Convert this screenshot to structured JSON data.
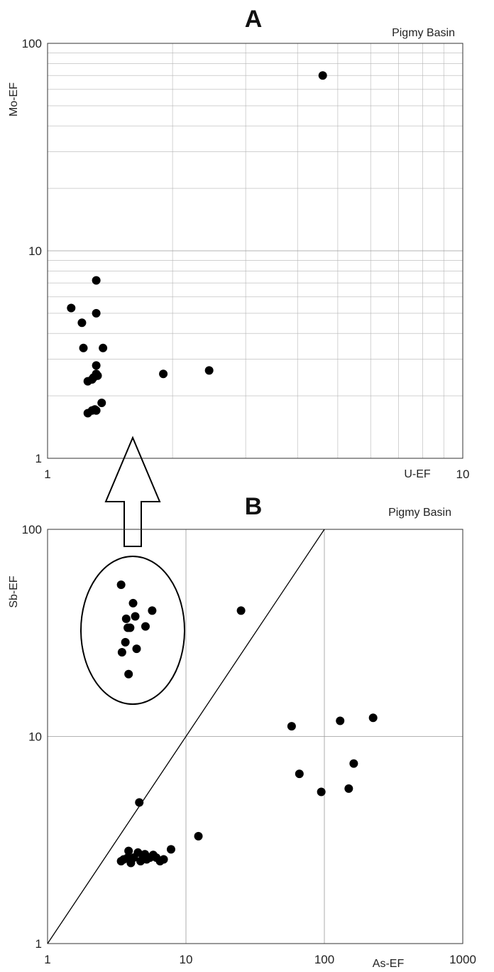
{
  "chart_data": [
    {
      "type": "scatter",
      "panel": "A",
      "title": "Pigmy Basin",
      "xlabel": "U-EF",
      "ylabel": "Mo-EF",
      "xscale": "log",
      "yscale": "log",
      "xlim": [
        1,
        10
      ],
      "ylim": [
        1,
        100
      ],
      "x_ticks": [
        "1",
        "10"
      ],
      "y_ticks": [
        "1",
        "10",
        "100"
      ],
      "grid": true,
      "points": [
        {
          "x": 1.14,
          "y": 5.3
        },
        {
          "x": 1.21,
          "y": 4.5
        },
        {
          "x": 1.22,
          "y": 3.4
        },
        {
          "x": 1.25,
          "y": 2.35
        },
        {
          "x": 1.28,
          "y": 2.4
        },
        {
          "x": 1.29,
          "y": 2.45
        },
        {
          "x": 1.31,
          "y": 2.8
        },
        {
          "x": 1.31,
          "y": 7.2
        },
        {
          "x": 1.31,
          "y": 5.0
        },
        {
          "x": 1.31,
          "y": 2.55
        },
        {
          "x": 1.32,
          "y": 2.5
        },
        {
          "x": 1.25,
          "y": 1.65
        },
        {
          "x": 1.28,
          "y": 1.7
        },
        {
          "x": 1.3,
          "y": 1.72
        },
        {
          "x": 1.31,
          "y": 1.7
        },
        {
          "x": 1.36,
          "y": 3.4
        },
        {
          "x": 1.35,
          "y": 1.85
        },
        {
          "x": 1.9,
          "y": 2.55
        },
        {
          "x": 2.45,
          "y": 2.65
        },
        {
          "x": 4.6,
          "y": 70
        }
      ]
    },
    {
      "type": "scatter",
      "panel": "B",
      "title": "Pigmy Basin",
      "xlabel": "As-EF",
      "ylabel": "Sb-EF",
      "xscale": "log",
      "yscale": "log",
      "xlim": [
        1,
        1000
      ],
      "ylim": [
        1,
        100
      ],
      "x_ticks": [
        "1",
        "10",
        "100",
        "1000"
      ],
      "y_ticks": [
        "1",
        "10",
        "100"
      ],
      "grid": true,
      "reference_line": "1:1",
      "points": [
        {
          "x": 3.4,
          "y": 54
        },
        {
          "x": 3.7,
          "y": 37
        },
        {
          "x": 3.8,
          "y": 33.5
        },
        {
          "x": 3.95,
          "y": 33.5
        },
        {
          "x": 4.15,
          "y": 44
        },
        {
          "x": 4.3,
          "y": 38
        },
        {
          "x": 3.65,
          "y": 28.5
        },
        {
          "x": 3.45,
          "y": 25.5
        },
        {
          "x": 4.4,
          "y": 26.5
        },
        {
          "x": 5.1,
          "y": 34
        },
        {
          "x": 5.7,
          "y": 40.5
        },
        {
          "x": 3.85,
          "y": 20
        },
        {
          "x": 25,
          "y": 40.5
        },
        {
          "x": 4.6,
          "y": 4.8
        },
        {
          "x": 3.4,
          "y": 2.5
        },
        {
          "x": 3.55,
          "y": 2.55
        },
        {
          "x": 3.8,
          "y": 2.6
        },
        {
          "x": 3.85,
          "y": 2.8
        },
        {
          "x": 4.0,
          "y": 2.45
        },
        {
          "x": 4.2,
          "y": 2.6
        },
        {
          "x": 4.5,
          "y": 2.75
        },
        {
          "x": 4.7,
          "y": 2.5
        },
        {
          "x": 4.9,
          "y": 2.6
        },
        {
          "x": 5.05,
          "y": 2.7
        },
        {
          "x": 5.2,
          "y": 2.55
        },
        {
          "x": 5.5,
          "y": 2.6
        },
        {
          "x": 5.8,
          "y": 2.68
        },
        {
          "x": 6.1,
          "y": 2.6
        },
        {
          "x": 6.5,
          "y": 2.5
        },
        {
          "x": 6.9,
          "y": 2.55
        },
        {
          "x": 7.8,
          "y": 2.85
        },
        {
          "x": 12.3,
          "y": 3.3
        },
        {
          "x": 58,
          "y": 11.2
        },
        {
          "x": 66,
          "y": 6.6
        },
        {
          "x": 95,
          "y": 5.4
        },
        {
          "x": 130,
          "y": 11.9
        },
        {
          "x": 150,
          "y": 5.6
        },
        {
          "x": 163,
          "y": 7.4
        },
        {
          "x": 225,
          "y": 12.3
        }
      ]
    }
  ]
}
